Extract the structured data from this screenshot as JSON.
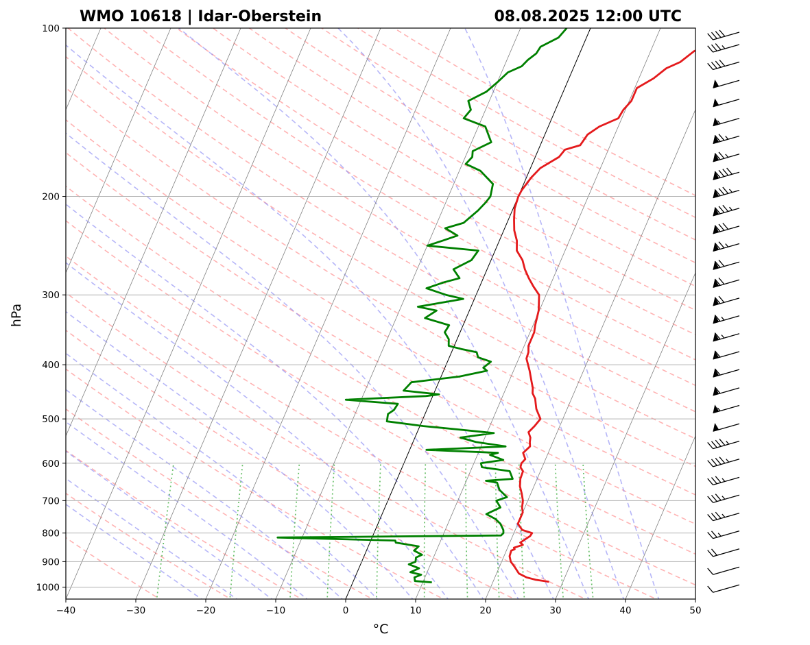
{
  "header": {
    "title_left": "WMO 10618 | Idar-Oberstein",
    "title_right": "08.08.2025 12:00 UTC"
  },
  "chart_data": {
    "type": "line",
    "title": "WMO 10618 | Idar-Oberstein",
    "subtitle": "08.08.2025 12:00 UTC",
    "xlabel": "°C",
    "ylabel": "hPa",
    "xlim": [
      -40,
      50
    ],
    "ylim": [
      1050,
      100
    ],
    "y_scale": "log",
    "grid": true,
    "x_ticks": [
      -40,
      -30,
      -20,
      -10,
      0,
      10,
      20,
      30,
      40,
      50
    ],
    "x_tick_labels": [
      "−40",
      "−30",
      "−20",
      "−10",
      "0",
      "10",
      "20",
      "30",
      "40",
      "50"
    ],
    "y_ticks": [
      100,
      200,
      300,
      400,
      500,
      600,
      700,
      800,
      900,
      1000
    ],
    "y_tick_labels": [
      "100",
      "200",
      "300",
      "400",
      "500",
      "600",
      "700",
      "800",
      "900",
      "1000"
    ],
    "background_lines": {
      "isotherms": "gray thin solid, skewed",
      "dry_adiabats": "red dashed",
      "moist_adiabats": "blue dashed",
      "mixing_ratio": "green dotted",
      "zero_isotherm": "black solid"
    },
    "series": [
      {
        "color": "#e41a1c",
        "points": [
          [
            978,
            28.0
          ],
          [
            970,
            26.0
          ],
          [
            960,
            24.5
          ],
          [
            945,
            23.2
          ],
          [
            920,
            22.2
          ],
          [
            900,
            21.3
          ],
          [
            880,
            20.8
          ],
          [
            860,
            20.7
          ],
          [
            855,
            21.1
          ],
          [
            850,
            20.9
          ],
          [
            840,
            22.0
          ],
          [
            832,
            21.5
          ],
          [
            825,
            21.8
          ],
          [
            810,
            22.5
          ],
          [
            800,
            22.6
          ],
          [
            790,
            21.0
          ],
          [
            770,
            20.0
          ],
          [
            750,
            20.0
          ],
          [
            735,
            20.0
          ],
          [
            720,
            19.6
          ],
          [
            700,
            19.3
          ],
          [
            680,
            18.7
          ],
          [
            660,
            18.0
          ],
          [
            640,
            17.6
          ],
          [
            620,
            17.5
          ],
          [
            610,
            16.9
          ],
          [
            600,
            16.8
          ],
          [
            590,
            17.1
          ],
          [
            575,
            16.4
          ],
          [
            560,
            17.0
          ],
          [
            550,
            16.7
          ],
          [
            540,
            16.5
          ],
          [
            528,
            15.9
          ],
          [
            515,
            16.4
          ],
          [
            500,
            16.8
          ],
          [
            490,
            16.2
          ],
          [
            480,
            15.6
          ],
          [
            470,
            15.2
          ],
          [
            460,
            14.8
          ],
          [
            450,
            14.1
          ],
          [
            440,
            13.8
          ],
          [
            430,
            13.3
          ],
          [
            420,
            12.8
          ],
          [
            410,
            12.3
          ],
          [
            400,
            11.7
          ],
          [
            390,
            11.1
          ],
          [
            380,
            11.0
          ],
          [
            370,
            10.6
          ],
          [
            350,
            10.6
          ],
          [
            340,
            10.3
          ],
          [
            320,
            9.9
          ],
          [
            300,
            9.0
          ],
          [
            290,
            7.7
          ],
          [
            280,
            6.5
          ],
          [
            270,
            5.4
          ],
          [
            260,
            4.5
          ],
          [
            250,
            3.1
          ],
          [
            240,
            2.5
          ],
          [
            230,
            1.5
          ],
          [
            220,
            0.8
          ],
          [
            210,
            0.2
          ],
          [
            200,
            0.0
          ],
          [
            195,
            0.1
          ],
          [
            185,
            0.7
          ],
          [
            178,
            1.4
          ],
          [
            170,
            3.4
          ],
          [
            165,
            3.8
          ],
          [
            162,
            5.7
          ],
          [
            155,
            6.1
          ],
          [
            150,
            7.3
          ],
          [
            145,
            9.5
          ],
          [
            140,
            9.7
          ],
          [
            135,
            10.3
          ],
          [
            128,
            10.3
          ],
          [
            123,
            12.1
          ],
          [
            118,
            13.3
          ],
          [
            115,
            14.9
          ],
          [
            110,
            16.2
          ],
          [
            107,
            17.9
          ],
          [
            104,
            19.6
          ],
          [
            102,
            21.7
          ],
          [
            100,
            21.5
          ]
        ]
      },
      {
        "color": "#008000",
        "points": [
          [
            980,
            11.3
          ],
          [
            975,
            8.8
          ],
          [
            960,
            8.5
          ],
          [
            950,
            9.3
          ],
          [
            940,
            7.6
          ],
          [
            925,
            8.6
          ],
          [
            910,
            6.9
          ],
          [
            900,
            7.7
          ],
          [
            885,
            7.5
          ],
          [
            875,
            8.2
          ],
          [
            860,
            6.8
          ],
          [
            845,
            7.2
          ],
          [
            832,
            3.7
          ],
          [
            825,
            3.5
          ],
          [
            815,
            -13.5
          ],
          [
            808,
            18.3
          ],
          [
            800,
            18.5
          ],
          [
            790,
            18.3
          ],
          [
            770,
            17.5
          ],
          [
            755,
            16.5
          ],
          [
            740,
            14.9
          ],
          [
            720,
            16.5
          ],
          [
            700,
            15.5
          ],
          [
            690,
            16.8
          ],
          [
            670,
            15.3
          ],
          [
            650,
            14.5
          ],
          [
            645,
            12.8
          ],
          [
            640,
            16.5
          ],
          [
            620,
            15.6
          ],
          [
            610,
            11.4
          ],
          [
            600,
            11.0
          ],
          [
            592,
            14.0
          ],
          [
            580,
            11.8
          ],
          [
            575,
            12.8
          ],
          [
            568,
            2.4
          ],
          [
            560,
            13.5
          ],
          [
            550,
            9.0
          ],
          [
            540,
            6.5
          ],
          [
            530,
            11.0
          ],
          [
            522,
            5.5
          ],
          [
            515,
            0.5
          ],
          [
            505,
            -5.0
          ],
          [
            490,
            -5.3
          ],
          [
            482,
            -4.7
          ],
          [
            470,
            -4.5
          ],
          [
            462,
            -12.2
          ],
          [
            455,
            -1.0
          ],
          [
            452,
            0.8
          ],
          [
            445,
            -4.5
          ],
          [
            430,
            -3.9
          ],
          [
            420,
            2.6
          ],
          [
            410,
            6.2
          ],
          [
            405,
            5.5
          ],
          [
            395,
            6.2
          ],
          [
            388,
            4.1
          ],
          [
            380,
            3.6
          ],
          [
            375,
            1.2
          ],
          [
            370,
            -0.8
          ],
          [
            360,
            -1.2
          ],
          [
            350,
            -2.2
          ],
          [
            340,
            -2.0
          ],
          [
            330,
            -5.9
          ],
          [
            320,
            -4.7
          ],
          [
            315,
            -7.6
          ],
          [
            305,
            -1.6
          ],
          [
            300,
            -4.3
          ],
          [
            292,
            -7.5
          ],
          [
            285,
            -5.4
          ],
          [
            280,
            -3.4
          ],
          [
            270,
            -4.8
          ],
          [
            260,
            -2.8
          ],
          [
            250,
            -2.4
          ],
          [
            245,
            -10.0
          ],
          [
            240,
            -8.1
          ],
          [
            235,
            -6.3
          ],
          [
            228,
            -8.5
          ],
          [
            223,
            -6.2
          ],
          [
            212,
            -4.9
          ],
          [
            205,
            -4.3
          ],
          [
            200,
            -4.0
          ],
          [
            190,
            -4.4
          ],
          [
            180,
            -7.0
          ],
          [
            175,
            -9.5
          ],
          [
            170,
            -9.0
          ],
          [
            166,
            -9.3
          ],
          [
            160,
            -7.2
          ],
          [
            150,
            -9.0
          ],
          [
            145,
            -12.6
          ],
          [
            140,
            -12.1
          ],
          [
            135,
            -13.0
          ],
          [
            130,
            -11.0
          ],
          [
            125,
            -10.0
          ],
          [
            120,
            -9.1
          ],
          [
            117,
            -7.5
          ],
          [
            114,
            -7.0
          ],
          [
            111,
            -6.2
          ],
          [
            108,
            -6.0
          ],
          [
            104,
            -4.0
          ],
          [
            100,
            -3.4
          ]
        ]
      }
    ],
    "wind_barbs": [
      {
        "p": 100,
        "kt": 40
      },
      {
        "p": 107,
        "kt": 35
      },
      {
        "p": 115,
        "kt": 40
      },
      {
        "p": 124,
        "kt": 50
      },
      {
        "p": 134,
        "kt": 50
      },
      {
        "p": 145,
        "kt": 55
      },
      {
        "p": 156,
        "kt": 75
      },
      {
        "p": 168,
        "kt": 75
      },
      {
        "p": 181,
        "kt": 90
      },
      {
        "p": 195,
        "kt": 85
      },
      {
        "p": 210,
        "kt": 85
      },
      {
        "p": 226,
        "kt": 80
      },
      {
        "p": 243,
        "kt": 75
      },
      {
        "p": 262,
        "kt": 70
      },
      {
        "p": 282,
        "kt": 70
      },
      {
        "p": 304,
        "kt": 70
      },
      {
        "p": 327,
        "kt": 65
      },
      {
        "p": 352,
        "kt": 65
      },
      {
        "p": 379,
        "kt": 60
      },
      {
        "p": 408,
        "kt": 60
      },
      {
        "p": 440,
        "kt": 60
      },
      {
        "p": 473,
        "kt": 55
      },
      {
        "p": 510,
        "kt": 50
      },
      {
        "p": 548,
        "kt": 45
      },
      {
        "p": 590,
        "kt": 45
      },
      {
        "p": 636,
        "kt": 35
      },
      {
        "p": 684,
        "kt": 35
      },
      {
        "p": 737,
        "kt": 35
      },
      {
        "p": 793,
        "kt": 25
      },
      {
        "p": 854,
        "kt": 20
      },
      {
        "p": 920,
        "kt": 10
      },
      {
        "p": 990,
        "kt": 10
      }
    ]
  }
}
